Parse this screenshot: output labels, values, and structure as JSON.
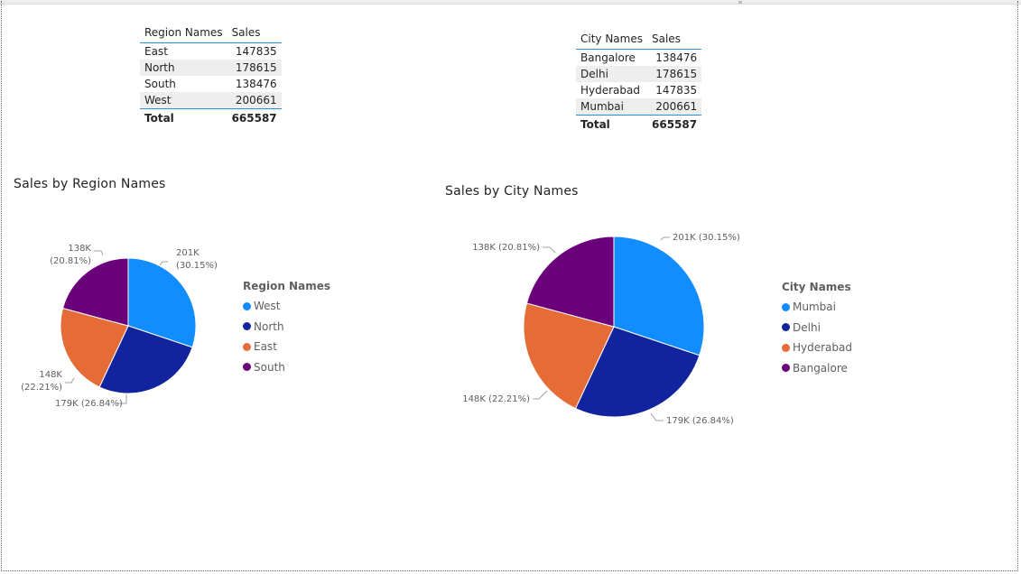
{
  "region_table": {
    "headers": [
      "Region Names",
      "Sales"
    ],
    "rows": [
      {
        "name": "East",
        "sales": "147835"
      },
      {
        "name": "North",
        "sales": "178615"
      },
      {
        "name": "South",
        "sales": "138476"
      },
      {
        "name": "West",
        "sales": "200661"
      }
    ],
    "total_label": "Total",
    "total_value": "665587"
  },
  "city_table": {
    "headers": [
      "City Names",
      "Sales"
    ],
    "rows": [
      {
        "name": "Bangalore",
        "sales": "138476"
      },
      {
        "name": "Delhi",
        "sales": "178615"
      },
      {
        "name": "Hyderabad",
        "sales": "147835"
      },
      {
        "name": "Mumbai",
        "sales": "200661"
      }
    ],
    "total_label": "Total",
    "total_value": "665587"
  },
  "chart_data": [
    {
      "type": "pie",
      "title": "Sales by Region Names",
      "legend_title": "Region Names",
      "legend_position": "right",
      "slices": [
        {
          "label": "West",
          "value": 200661,
          "color": "#118dff",
          "data_label": [
            "201K",
            "(30.15%)"
          ]
        },
        {
          "label": "North",
          "value": 178615,
          "color": "#12239e",
          "data_label": [
            "179K (26.84%)"
          ]
        },
        {
          "label": "East",
          "value": 147835,
          "color": "#e66c37",
          "data_label": [
            "148K",
            "(22.21%)"
          ]
        },
        {
          "label": "South",
          "value": 138476,
          "color": "#6b007b",
          "data_label": [
            "138K",
            "(20.81%)"
          ]
        }
      ]
    },
    {
      "type": "pie",
      "title": "Sales by City Names",
      "legend_title": "City Names",
      "legend_position": "right",
      "slices": [
        {
          "label": "Mumbai",
          "value": 200661,
          "color": "#118dff",
          "data_label": [
            "201K (30.15%)"
          ]
        },
        {
          "label": "Delhi",
          "value": 178615,
          "color": "#12239e",
          "data_label": [
            "179K (26.84%)"
          ]
        },
        {
          "label": "Hyderabad",
          "value": 147835,
          "color": "#e66c37",
          "data_label": [
            "148K (22.21%)"
          ]
        },
        {
          "label": "Bangalore",
          "value": 138476,
          "color": "#6b007b",
          "data_label": [
            "138K (20.81%)"
          ]
        }
      ]
    }
  ]
}
